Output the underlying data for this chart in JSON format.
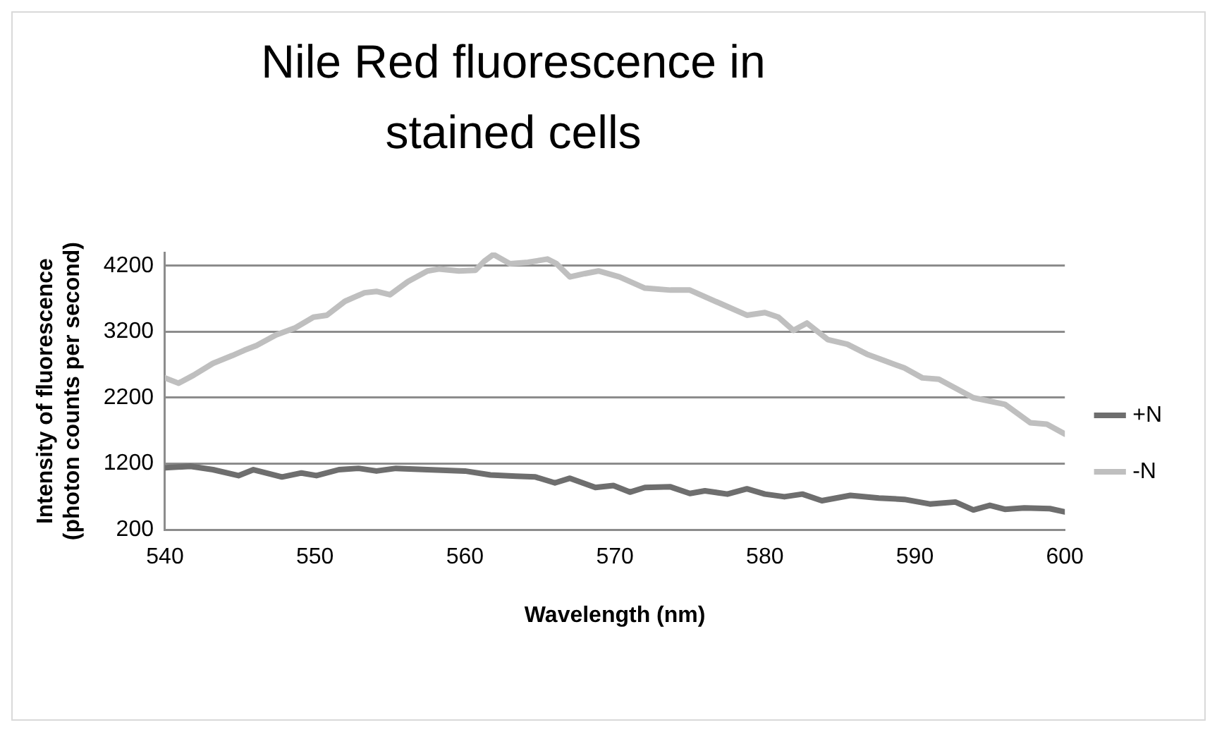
{
  "chart_data": {
    "type": "line",
    "title": "Nile Red fluorescence in stained cells",
    "xlabel": "Wavelength (nm)",
    "ylabel": "Intensity of fluorescence (photon counts per second)",
    "xlim": [
      540,
      600
    ],
    "xticks": [
      540,
      550,
      560,
      570,
      580,
      590,
      600
    ],
    "ylim": [
      200,
      4400
    ],
    "yticks": [
      200,
      1200,
      2200,
      3200,
      4200
    ],
    "grid": "y",
    "legend": "right",
    "marker": "none",
    "line_style": "solid",
    "series": [
      {
        "name": "+N",
        "color": "#6e6e6e",
        "x": [
          540,
          541.7,
          543.2,
          544.9,
          545.9,
          547.8,
          549.1,
          550.1,
          551.6,
          552.9,
          554.1,
          555.4,
          557.5,
          560,
          561.7,
          563.4,
          564.7,
          566,
          567,
          568.7,
          569.9,
          571,
          572,
          573.7,
          575,
          576,
          577.5,
          578.8,
          580,
          581.3,
          582.5,
          583.8,
          585.7,
          587.6,
          589.3,
          591,
          592.7,
          593.9,
          595,
          596,
          597.3,
          599,
          600
        ],
        "values": [
          1140,
          1160,
          1110,
          1020,
          1110,
          1000,
          1060,
          1020,
          1110,
          1130,
          1090,
          1130,
          1110,
          1090,
          1030,
          1010,
          1000,
          910,
          980,
          840,
          870,
          770,
          840,
          850,
          750,
          790,
          740,
          820,
          740,
          700,
          740,
          640,
          720,
          680,
          660,
          590,
          620,
          500,
          570,
          510,
          530,
          520,
          470
        ]
      },
      {
        "name": "-N",
        "color": "#bfbfbf",
        "x": [
          540,
          540.9,
          541.9,
          543.2,
          544.5,
          545.3,
          546.1,
          547.4,
          548.7,
          549.9,
          550.8,
          552,
          553.3,
          554.1,
          555,
          556.2,
          557.5,
          558.3,
          559.6,
          560.7,
          561.3,
          561.9,
          563,
          564.2,
          565.5,
          566.1,
          567,
          568,
          568.9,
          570.3,
          572,
          573.7,
          575,
          577.1,
          578.8,
          580,
          580.9,
          581.9,
          582.8,
          584.2,
          585.5,
          586.8,
          589.3,
          590.5,
          591.6,
          593.9,
          596,
          597.7,
          598.8,
          600
        ],
        "values": [
          2500,
          2420,
          2540,
          2720,
          2840,
          2920,
          2990,
          3150,
          3260,
          3420,
          3450,
          3660,
          3790,
          3810,
          3760,
          3960,
          4120,
          4150,
          4120,
          4130,
          4270,
          4370,
          4230,
          4250,
          4300,
          4230,
          4030,
          4080,
          4120,
          4030,
          3860,
          3830,
          3830,
          3620,
          3450,
          3490,
          3420,
          3220,
          3330,
          3080,
          3010,
          2860,
          2650,
          2500,
          2480,
          2200,
          2100,
          1820,
          1800,
          1650
        ]
      }
    ]
  }
}
